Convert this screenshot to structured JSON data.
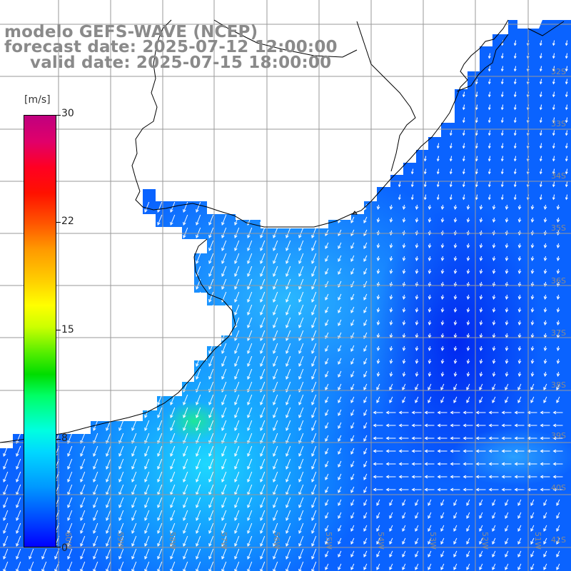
{
  "header": {
    "line1": "modelo GEFS-WAVE (NCEP)",
    "line2": "forecast date: 2025-07-12 12:00:00",
    "line3": "valid date: 2025-07-15 18:00:00"
  },
  "colorbar": {
    "unit": "[m/s]",
    "ticks": [
      {
        "label": "30",
        "value": 30
      },
      {
        "label": "22",
        "value": 22
      },
      {
        "label": "15",
        "value": 15
      },
      {
        "label": "8",
        "value": 8
      },
      {
        "label": "0",
        "value": 0
      }
    ],
    "min": 0,
    "max": 30
  },
  "map": {
    "lat_labels": [
      "32S",
      "33S",
      "34S",
      "35S",
      "36S",
      "37S",
      "38S",
      "39S",
      "40S",
      "41S"
    ],
    "lon_labels": [
      "60W",
      "59W",
      "58W",
      "57W",
      "56W",
      "55W",
      "54W",
      "53W",
      "52W",
      "51W"
    ],
    "colors": {
      "land": "#ffffff",
      "coast": "#000000",
      "grid": "#9a9a9a",
      "arrow": "#ffffff",
      "label": "#8a8a8a"
    }
  }
}
